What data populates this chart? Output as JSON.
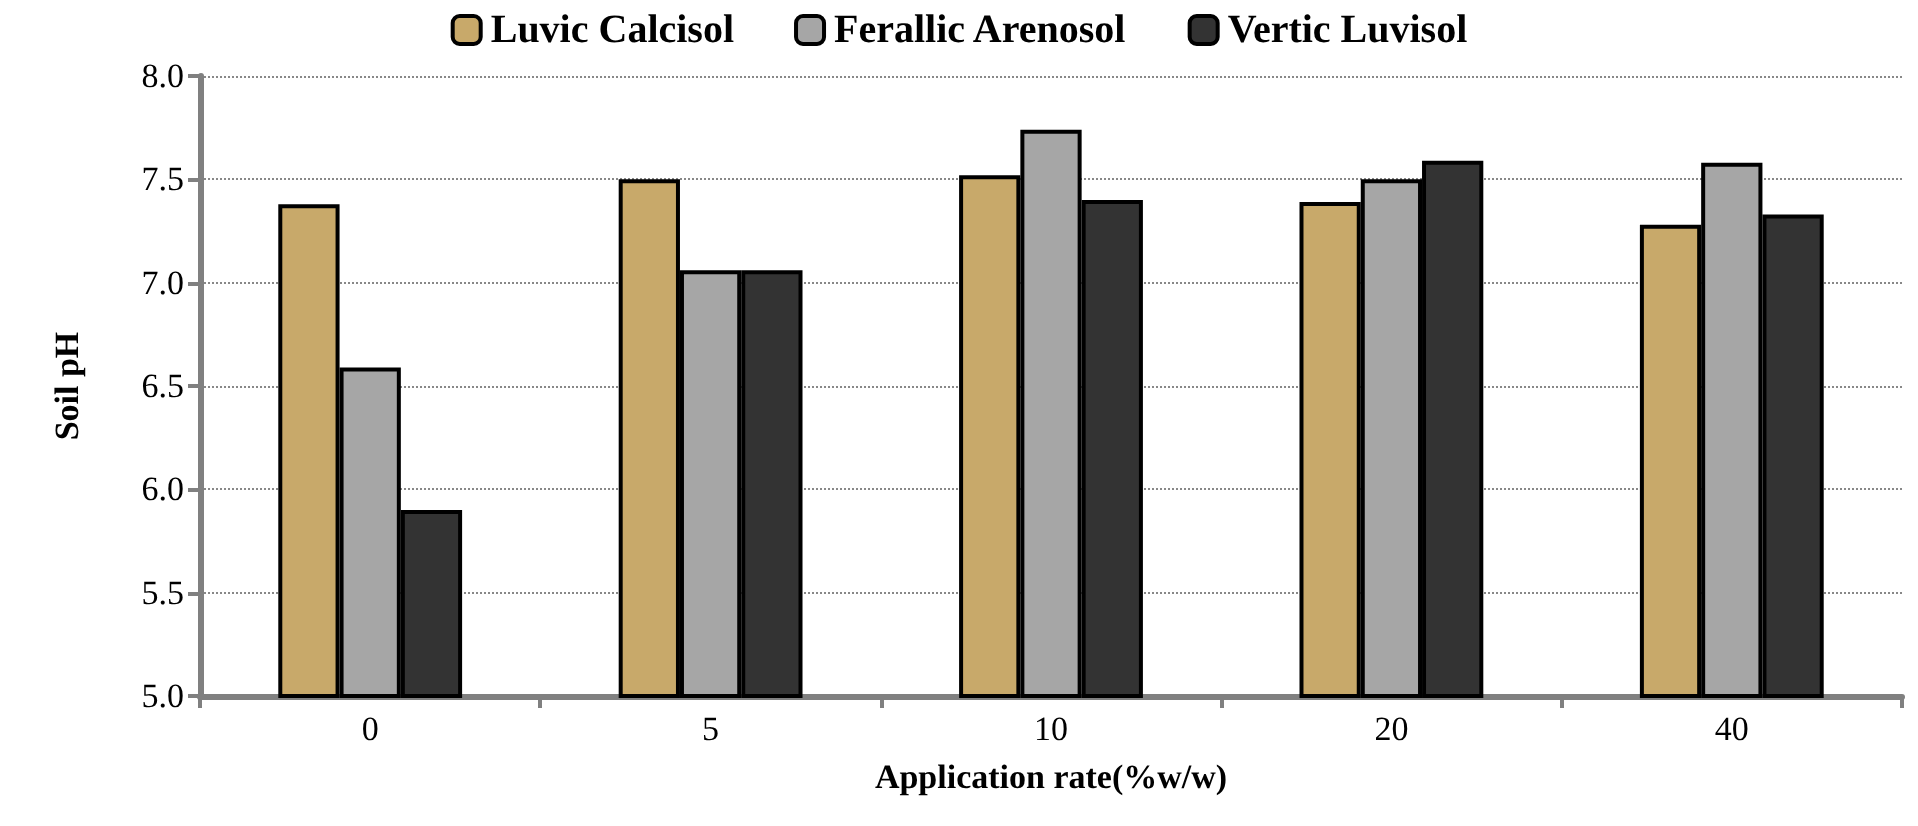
{
  "chart_data": {
    "type": "bar",
    "xlabel": "Application rate(%w/w)",
    "ylabel": "Soil pH",
    "categories": [
      "0",
      "5",
      "10",
      "20",
      "40"
    ],
    "series": [
      {
        "name": "Luvic Calcisol",
        "color": "#c8a96a",
        "values": [
          7.38,
          7.5,
          7.52,
          7.39,
          7.28
        ]
      },
      {
        "name": "Ferallic Arenosol",
        "color": "#a6a6a6",
        "values": [
          6.59,
          7.06,
          7.74,
          7.5,
          7.58
        ]
      },
      {
        "name": "Vertic Luvisol",
        "color": "#333333",
        "values": [
          5.9,
          7.06,
          7.4,
          7.59,
          7.33
        ]
      }
    ],
    "ylim": [
      5,
      8
    ],
    "yticks": [
      {
        "value": 5,
        "label": "5.0"
      },
      5.5,
      {
        "value": 6,
        "label": "6.0"
      },
      6.5,
      {
        "value": 7,
        "label": "7.0"
      },
      7.5,
      {
        "value": 8,
        "label": "8.0"
      }
    ],
    "grid": "y",
    "legend": "top"
  }
}
